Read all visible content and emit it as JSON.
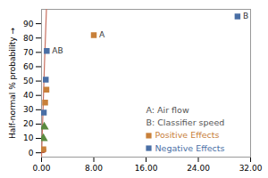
{
  "chart_data": {
    "type": "scatter",
    "ylabel": "Half-normal % probability",
    "xlim": [
      0,
      32
    ],
    "ylim": [
      -3,
      100
    ],
    "xticks": [
      {
        "value": 0,
        "label": "0.00"
      },
      {
        "value": 8,
        "label": "8.00"
      },
      {
        "value": 16,
        "label": "16.00"
      },
      {
        "value": 24,
        "label": "24.00"
      },
      {
        "value": 32,
        "label": "32.00"
      }
    ],
    "yticks": [
      0,
      10,
      20,
      30,
      40,
      50,
      60,
      70,
      80,
      90
    ],
    "series": [
      {
        "type": "line",
        "color": "#c87060",
        "x": [
          0.0,
          0.45,
          0.75
        ],
        "values": [
          -3,
          62,
          100
        ]
      },
      {
        "type": "scatter",
        "color": "#b05030",
        "marker": "circle",
        "x": [
          0.22
        ],
        "values": [
          2
        ]
      },
      {
        "type": "scatter",
        "color": "#5a8a40",
        "marker": "triangle",
        "x": [
          0.28,
          0.42
        ],
        "values": [
          10,
          18
        ]
      },
      {
        "type": "scatter",
        "name": "Positive Effects",
        "color": "#c8803a",
        "marker": "square",
        "x": [
          0.28,
          0.55,
          0.75,
          8.0
        ],
        "values": [
          2.5,
          35,
          44,
          82
        ],
        "labels": [
          null,
          null,
          null,
          "A"
        ]
      },
      {
        "type": "scatter",
        "name": "Negative Effects",
        "color": "#4a6fa5",
        "marker": "square",
        "x": [
          0.35,
          0.65,
          0.8,
          30.0
        ],
        "values": [
          28,
          51,
          71,
          95
        ],
        "labels": [
          null,
          null,
          "AB",
          "B"
        ]
      }
    ],
    "annotations": [
      "A: Air flow",
      "B: Classifier speed"
    ],
    "legend": "lower right"
  }
}
